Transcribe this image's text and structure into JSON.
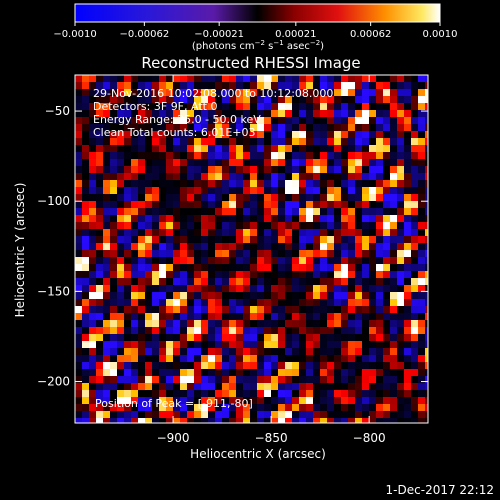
{
  "chart_data": {
    "type": "heatmap",
    "title": "Reconstructed RHESSI Image",
    "xlabel": "Heliocentric X (arcsec)",
    "ylabel": "Heliocentric Y (arcsec)",
    "xlim": [
      -950,
      -770
    ],
    "ylim": [
      -223,
      -30
    ],
    "x_ticks": [
      {
        "value": -900,
        "label": "−900"
      },
      {
        "value": -850,
        "label": "−850"
      },
      {
        "value": -800,
        "label": "−800"
      }
    ],
    "y_ticks": [
      {
        "value": -50,
        "label": "−50"
      },
      {
        "value": -100,
        "label": "−100"
      },
      {
        "value": -150,
        "label": "−150"
      },
      {
        "value": -200,
        "label": "−200"
      }
    ],
    "colorbar": {
      "colormap": "hot-metal with blue negatives",
      "range": [
        -0.001,
        0.001
      ],
      "ticks": [
        {
          "value": -0.001,
          "label": "−0.0010"
        },
        {
          "value": -0.00062,
          "label": "−0.00062"
        },
        {
          "value": -0.00021,
          "label": "−0.00021"
        },
        {
          "value": 0.00021,
          "label": "0.00021"
        },
        {
          "value": 0.00062,
          "label": "0.00062"
        },
        {
          "value": 0.001,
          "label": "0.0010"
        }
      ],
      "units_main": "(photons cm",
      "units_sup1": "−2",
      "units_mid1": " s",
      "units_sup2": "−1",
      "units_mid2": " asec",
      "units_sup3": "−2",
      "units_end": ")"
    },
    "annotations": {
      "time_range": "29-Nov-2016 10:02:08.000 to 10:12:08.000",
      "detectors": "Detectors: 3F 9F, Att 0",
      "energy": "Energy Range: 25.0 - 50.0 keV",
      "clean": "Clean    Total counts: 6.01E+03",
      "peak": "Position of Peak = [-911,-80]"
    },
    "footer": "1-Dec-2017 22:12",
    "colors": {
      "background": "#000000",
      "foreground": "#ffffff"
    }
  }
}
